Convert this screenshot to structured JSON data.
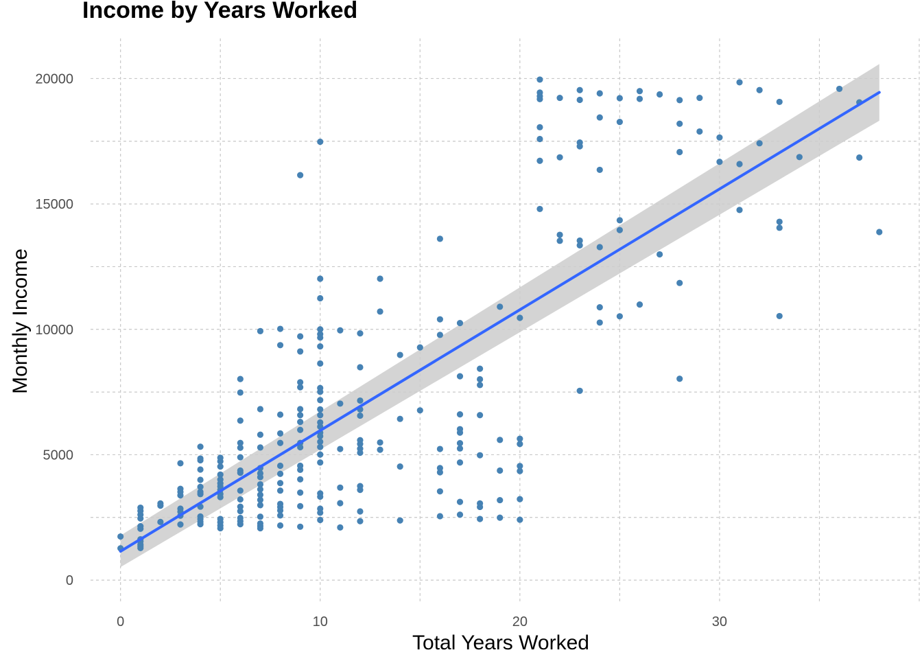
{
  "chart_data": {
    "type": "scatter",
    "title": "Income by Years Worked",
    "xlabel": "Total Years Worked",
    "ylabel": "Monthly Income",
    "xlim": [
      -1.5,
      40
    ],
    "ylim": [
      -900,
      21600
    ],
    "x_ticks": [
      0,
      10,
      20,
      30
    ],
    "y_ticks": [
      0,
      5000,
      10000,
      15000,
      20000
    ],
    "grid": true,
    "point_color": "#4682B4",
    "trend_color": "#3366FF",
    "band_color": "#CCCCCC",
    "trend_line": {
      "x": [
        0,
        38
      ],
      "y": [
        1150,
        19450
      ],
      "band_upper": [
        1780,
        20580
      ],
      "band_lower": [
        520,
        18320
      ]
    },
    "points": [
      [
        0,
        1740
      ],
      [
        0,
        1270
      ],
      [
        1,
        2890
      ],
      [
        1,
        2760
      ],
      [
        1,
        2610
      ],
      [
        1,
        2460
      ],
      [
        1,
        2150
      ],
      [
        1,
        2050
      ],
      [
        1,
        1630
      ],
      [
        1,
        1550
      ],
      [
        1,
        1420
      ],
      [
        1,
        1350
      ],
      [
        1,
        1280
      ],
      [
        2,
        3060
      ],
      [
        2,
        2970
      ],
      [
        2,
        2320
      ],
      [
        3,
        4660
      ],
      [
        3,
        3640
      ],
      [
        3,
        3520
      ],
      [
        3,
        3380
      ],
      [
        3,
        2850
      ],
      [
        3,
        2730
      ],
      [
        3,
        2570
      ],
      [
        3,
        2220
      ],
      [
        4,
        5320
      ],
      [
        4,
        4850
      ],
      [
        4,
        4780
      ],
      [
        4,
        4410
      ],
      [
        4,
        4000
      ],
      [
        4,
        3720
      ],
      [
        4,
        3520
      ],
      [
        4,
        3430
      ],
      [
        4,
        2930
      ],
      [
        4,
        2540
      ],
      [
        4,
        2440
      ],
      [
        4,
        2330
      ],
      [
        4,
        2230
      ],
      [
        5,
        4880
      ],
      [
        5,
        4740
      ],
      [
        5,
        4530
      ],
      [
        5,
        4210
      ],
      [
        5,
        4010
      ],
      [
        5,
        3860
      ],
      [
        5,
        3740
      ],
      [
        5,
        3600
      ],
      [
        5,
        3440
      ],
      [
        5,
        3310
      ],
      [
        5,
        2440
      ],
      [
        5,
        2310
      ],
      [
        5,
        2180
      ],
      [
        5,
        2070
      ],
      [
        6,
        8020
      ],
      [
        6,
        7480
      ],
      [
        6,
        6360
      ],
      [
        6,
        5470
      ],
      [
        6,
        5280
      ],
      [
        6,
        4900
      ],
      [
        6,
        4370
      ],
      [
        6,
        4280
      ],
      [
        6,
        3570
      ],
      [
        6,
        3220
      ],
      [
        6,
        2930
      ],
      [
        6,
        2750
      ],
      [
        6,
        2480
      ],
      [
        6,
        2350
      ],
      [
        6,
        2230
      ],
      [
        7,
        9930
      ],
      [
        7,
        6820
      ],
      [
        7,
        5800
      ],
      [
        7,
        5290
      ],
      [
        7,
        4470
      ],
      [
        7,
        4260
      ],
      [
        7,
        4110
      ],
      [
        7,
        3820
      ],
      [
        7,
        3620
      ],
      [
        7,
        3400
      ],
      [
        7,
        3200
      ],
      [
        7,
        2990
      ],
      [
        7,
        2530
      ],
      [
        7,
        2260
      ],
      [
        7,
        2160
      ],
      [
        7,
        2070
      ],
      [
        8,
        10020
      ],
      [
        8,
        9370
      ],
      [
        8,
        6600
      ],
      [
        8,
        5850
      ],
      [
        8,
        5470
      ],
      [
        8,
        4560
      ],
      [
        8,
        4240
      ],
      [
        8,
        3870
      ],
      [
        8,
        3570
      ],
      [
        8,
        3040
      ],
      [
        8,
        2920
      ],
      [
        8,
        2780
      ],
      [
        8,
        2580
      ],
      [
        8,
        2180
      ],
      [
        9,
        16150
      ],
      [
        9,
        9720
      ],
      [
        9,
        9120
      ],
      [
        9,
        7890
      ],
      [
        9,
        7690
      ],
      [
        9,
        6820
      ],
      [
        9,
        6580
      ],
      [
        9,
        6310
      ],
      [
        9,
        5990
      ],
      [
        9,
        5470
      ],
      [
        9,
        5300
      ],
      [
        9,
        4560
      ],
      [
        9,
        4400
      ],
      [
        9,
        4020
      ],
      [
        9,
        3490
      ],
      [
        9,
        2950
      ],
      [
        9,
        2130
      ],
      [
        10,
        17480
      ],
      [
        10,
        12020
      ],
      [
        10,
        11240
      ],
      [
        10,
        10000
      ],
      [
        10,
        9810
      ],
      [
        10,
        9670
      ],
      [
        10,
        9320
      ],
      [
        10,
        8640
      ],
      [
        10,
        7660
      ],
      [
        10,
        7510
      ],
      [
        10,
        7180
      ],
      [
        10,
        6810
      ],
      [
        10,
        6580
      ],
      [
        10,
        6290
      ],
      [
        10,
        6120
      ],
      [
        10,
        5880
      ],
      [
        10,
        5740
      ],
      [
        10,
        5520
      ],
      [
        10,
        5310
      ],
      [
        10,
        5010
      ],
      [
        10,
        4690
      ],
      [
        10,
        3460
      ],
      [
        10,
        3330
      ],
      [
        10,
        2850
      ],
      [
        10,
        2690
      ],
      [
        10,
        2400
      ],
      [
        11,
        9960
      ],
      [
        11,
        7040
      ],
      [
        11,
        5230
      ],
      [
        11,
        3690
      ],
      [
        11,
        3070
      ],
      [
        11,
        2100
      ],
      [
        12,
        9840
      ],
      [
        12,
        8490
      ],
      [
        12,
        7160
      ],
      [
        12,
        6810
      ],
      [
        12,
        6560
      ],
      [
        12,
        5580
      ],
      [
        12,
        5430
      ],
      [
        12,
        5240
      ],
      [
        12,
        5080
      ],
      [
        12,
        3750
      ],
      [
        12,
        3600
      ],
      [
        12,
        2740
      ],
      [
        12,
        2350
      ],
      [
        13,
        12020
      ],
      [
        13,
        10710
      ],
      [
        13,
        5490
      ],
      [
        13,
        5200
      ],
      [
        14,
        8980
      ],
      [
        14,
        6430
      ],
      [
        14,
        4530
      ],
      [
        14,
        2380
      ],
      [
        15,
        9280
      ],
      [
        15,
        6770
      ],
      [
        16,
        13610
      ],
      [
        16,
        10400
      ],
      [
        16,
        9780
      ],
      [
        16,
        5230
      ],
      [
        16,
        4470
      ],
      [
        16,
        4300
      ],
      [
        16,
        3540
      ],
      [
        16,
        2550
      ],
      [
        17,
        10250
      ],
      [
        17,
        8130
      ],
      [
        17,
        6610
      ],
      [
        17,
        6020
      ],
      [
        17,
        5880
      ],
      [
        17,
        5460
      ],
      [
        17,
        5250
      ],
      [
        17,
        4690
      ],
      [
        17,
        3120
      ],
      [
        17,
        2610
      ],
      [
        18,
        8430
      ],
      [
        18,
        8010
      ],
      [
        18,
        7780
      ],
      [
        18,
        6580
      ],
      [
        18,
        4980
      ],
      [
        18,
        3060
      ],
      [
        18,
        2920
      ],
      [
        18,
        2440
      ],
      [
        19,
        10900
      ],
      [
        19,
        5590
      ],
      [
        19,
        4370
      ],
      [
        19,
        3190
      ],
      [
        19,
        2490
      ],
      [
        20,
        10460
      ],
      [
        20,
        5640
      ],
      [
        20,
        5430
      ],
      [
        20,
        4550
      ],
      [
        20,
        4350
      ],
      [
        20,
        3230
      ],
      [
        20,
        2410
      ],
      [
        21,
        19960
      ],
      [
        21,
        19440
      ],
      [
        21,
        19300
      ],
      [
        21,
        19180
      ],
      [
        21,
        18060
      ],
      [
        21,
        17590
      ],
      [
        21,
        16720
      ],
      [
        21,
        14800
      ],
      [
        22,
        19230
      ],
      [
        22,
        16860
      ],
      [
        22,
        13770
      ],
      [
        22,
        13530
      ],
      [
        23,
        19540
      ],
      [
        23,
        19150
      ],
      [
        23,
        17450
      ],
      [
        23,
        17300
      ],
      [
        23,
        13540
      ],
      [
        23,
        13350
      ],
      [
        23,
        7550
      ],
      [
        24,
        19410
      ],
      [
        24,
        18450
      ],
      [
        24,
        16360
      ],
      [
        24,
        13280
      ],
      [
        24,
        10880
      ],
      [
        24,
        10270
      ],
      [
        25,
        19220
      ],
      [
        25,
        18270
      ],
      [
        25,
        14350
      ],
      [
        25,
        13960
      ],
      [
        25,
        10520
      ],
      [
        26,
        19500
      ],
      [
        26,
        19190
      ],
      [
        26,
        10990
      ],
      [
        27,
        19370
      ],
      [
        27,
        12990
      ],
      [
        28,
        19140
      ],
      [
        28,
        18200
      ],
      [
        28,
        17070
      ],
      [
        28,
        11850
      ],
      [
        28,
        8030
      ],
      [
        29,
        19230
      ],
      [
        29,
        17890
      ],
      [
        30,
        17650
      ],
      [
        30,
        16680
      ],
      [
        31,
        19850
      ],
      [
        31,
        16590
      ],
      [
        31,
        14760
      ],
      [
        32,
        19540
      ],
      [
        32,
        17420
      ],
      [
        33,
        19070
      ],
      [
        33,
        14290
      ],
      [
        33,
        14050
      ],
      [
        33,
        10530
      ],
      [
        34,
        16870
      ],
      [
        36,
        19590
      ],
      [
        37,
        19050
      ],
      [
        37,
        16850
      ],
      [
        38,
        13880
      ]
    ]
  }
}
